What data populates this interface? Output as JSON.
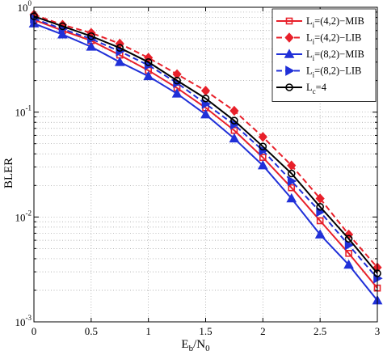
{
  "chart_data": {
    "type": "line",
    "title": "",
    "xlabel": {
      "main": "E",
      "sub1": "b",
      "mid": "/N",
      "sub2": "0"
    },
    "ylabel": "BLER",
    "xlim": [
      0,
      3
    ],
    "ylim": [
      0.001,
      1
    ],
    "yscale": "log",
    "grid": true,
    "legend_position": "top-right",
    "x_ticks": [
      "0",
      "0.5",
      "1",
      "1.5",
      "2",
      "2.5",
      "3"
    ],
    "y_ticks": [
      {
        "value": 1,
        "base": "10",
        "exp": "0"
      },
      {
        "value": 0.1,
        "base": "10",
        "exp": "-1"
      },
      {
        "value": 0.01,
        "base": "10",
        "exp": "-2"
      },
      {
        "value": 0.001,
        "base": "10",
        "exp": "-3"
      }
    ],
    "x": [
      0,
      0.25,
      0.5,
      0.75,
      1,
      1.25,
      1.5,
      1.75,
      2,
      2.25,
      2.5,
      2.75,
      3
    ],
    "series": [
      {
        "legend": {
          "main": "L",
          "sub": "i",
          "rest": "=(4,2)−MIB"
        },
        "color": "#e8202a",
        "dash": "solid",
        "marker": "square",
        "values": [
          0.76,
          0.6,
          0.48,
          0.35,
          0.25,
          0.17,
          0.11,
          0.067,
          0.037,
          0.019,
          0.0092,
          0.0045,
          0.0021
        ]
      },
      {
        "legend": {
          "main": "L",
          "sub": "i",
          "rest": "=(4,2)−LIB"
        },
        "color": "#e8202a",
        "dash": "dashed",
        "marker": "diamond",
        "values": [
          0.85,
          0.68,
          0.57,
          0.45,
          0.33,
          0.23,
          0.16,
          0.103,
          0.058,
          0.031,
          0.015,
          0.0068,
          0.0033
        ]
      },
      {
        "legend": {
          "main": "L",
          "sub": "i",
          "rest": "=(8,2)−MIB"
        },
        "color": "#2030d8",
        "dash": "solid",
        "marker": "triangle-up",
        "values": [
          0.7,
          0.55,
          0.42,
          0.3,
          0.22,
          0.15,
          0.095,
          0.056,
          0.031,
          0.015,
          0.0068,
          0.0035,
          0.0016
        ]
      },
      {
        "legend": {
          "main": "L",
          "sub": "i",
          "rest": "=(8,2)−LIB"
        },
        "color": "#2030d8",
        "dash": "dashed",
        "marker": "triangle-right",
        "values": [
          0.78,
          0.62,
          0.5,
          0.38,
          0.28,
          0.19,
          0.12,
          0.076,
          0.043,
          0.022,
          0.0112,
          0.0054,
          0.0026
        ]
      },
      {
        "legend": {
          "main": "L",
          "sub": "c",
          "rest": "=4"
        },
        "color": "#000000",
        "dash": "solid",
        "marker": "circle",
        "values": [
          0.82,
          0.66,
          0.53,
          0.41,
          0.3,
          0.2,
          0.135,
          0.083,
          0.047,
          0.026,
          0.0125,
          0.0062,
          0.0029
        ]
      }
    ]
  }
}
